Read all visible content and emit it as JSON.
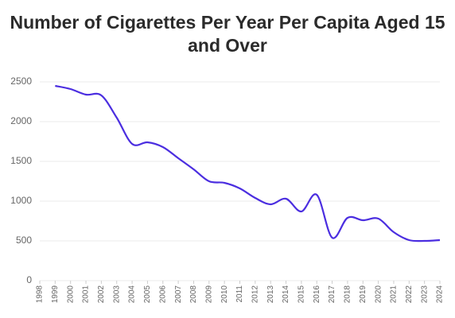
{
  "chart_data": {
    "type": "line",
    "title": "Number of Cigarettes Per Year Per Capita Aged 15 and Over",
    "x": [
      1999,
      2000,
      2001,
      2002,
      2003,
      2004,
      2005,
      2006,
      2007,
      2008,
      2009,
      2010,
      2011,
      2012,
      2013,
      2014,
      2015,
      2016,
      2017,
      2018,
      2019,
      2020,
      2021,
      2022,
      2023,
      2024
    ],
    "values": [
      2450,
      2410,
      2340,
      2330,
      2050,
      1720,
      1740,
      1680,
      1540,
      1400,
      1250,
      1230,
      1160,
      1040,
      960,
      1030,
      870,
      1080,
      540,
      790,
      760,
      780,
      610,
      510,
      500,
      510
    ],
    "color": "#4b2ee0",
    "xlim": [
      1998,
      2024
    ],
    "xticks": [
      1998,
      1999,
      2000,
      2001,
      2002,
      2003,
      2004,
      2005,
      2006,
      2007,
      2008,
      2009,
      2010,
      2011,
      2012,
      2013,
      2014,
      2015,
      2016,
      2017,
      2018,
      2019,
      2020,
      2021,
      2022,
      2023,
      2024
    ],
    "ylim": [
      0,
      2500
    ],
    "yticks": [
      0,
      500,
      1000,
      1500,
      2000,
      2500
    ],
    "grid": true
  }
}
